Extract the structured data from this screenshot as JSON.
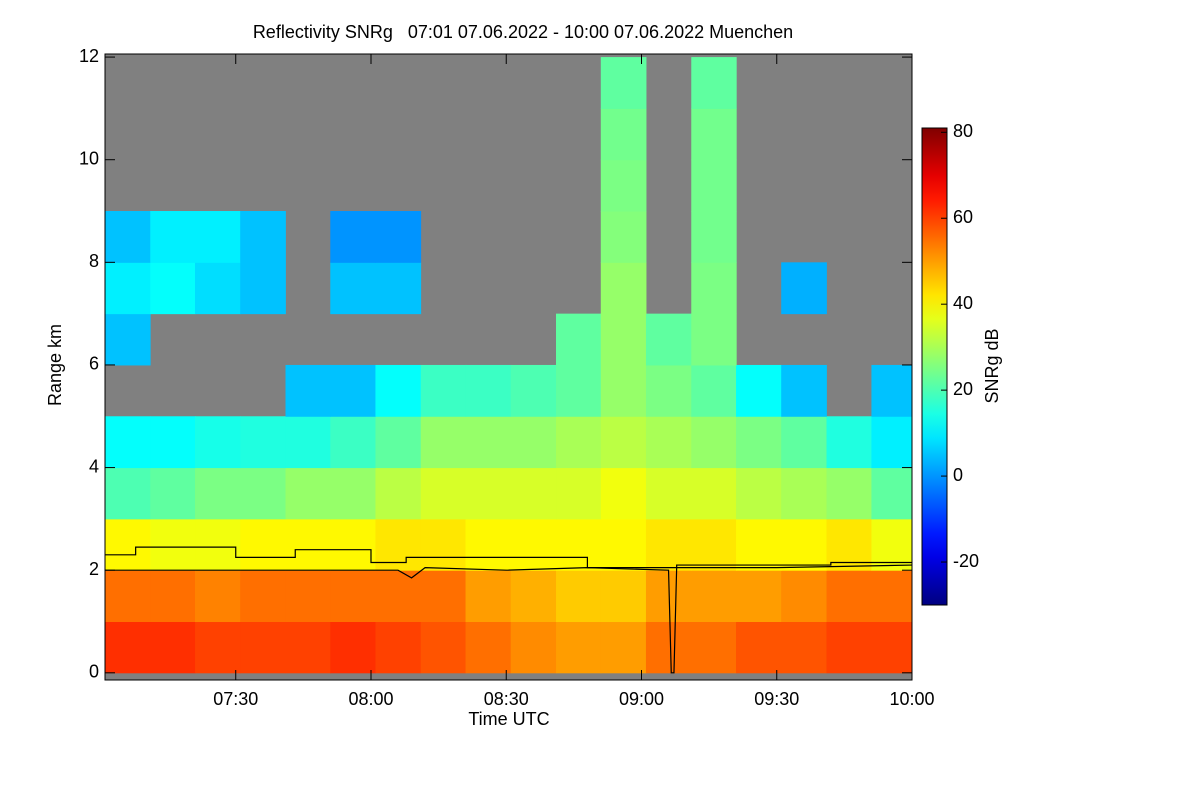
{
  "chart_data": {
    "type": "heatmap",
    "title": "Reflectivity SNRg   07:01 07.06.2022 - 10:00 07.06.2022 Muenchen",
    "xlabel": "Time UTC",
    "ylabel": "Range km",
    "colorbar_label": "SNRg dB",
    "colormap": "jet",
    "missing_color": "#808080",
    "xlim": [
      7.0167,
      10.0
    ],
    "xticks": [
      {
        "value": 7.5,
        "label": "07:30"
      },
      {
        "value": 8.0,
        "label": "08:00"
      },
      {
        "value": 8.5,
        "label": "08:30"
      },
      {
        "value": 9.0,
        "label": "09:00"
      },
      {
        "value": 9.5,
        "label": "09:30"
      },
      {
        "value": 10.0,
        "label": "10:00"
      }
    ],
    "ylim": [
      -0.14,
      12.06
    ],
    "yticks": [
      0,
      2,
      4,
      6,
      8,
      10,
      12
    ],
    "clim": [
      -30,
      81
    ],
    "cticks": [
      -20,
      0,
      20,
      40,
      60,
      80
    ],
    "x": [
      7.1,
      7.267,
      7.433,
      7.6,
      7.767,
      7.933,
      8.1,
      8.267,
      8.433,
      8.6,
      8.767,
      8.933,
      9.1,
      9.267,
      9.433,
      9.6,
      9.767,
      9.933
    ],
    "y": [
      0.5,
      1.5,
      2.5,
      3.5,
      4.5,
      5.5,
      6.5,
      7.5,
      8.5,
      9.5,
      10.5,
      11.5
    ],
    "z": [
      [
        62,
        62,
        60,
        60,
        60,
        62,
        60,
        58,
        55,
        52,
        50,
        50,
        55,
        55,
        58,
        58,
        60,
        60
      ],
      [
        55,
        55,
        53,
        55,
        55,
        55,
        55,
        55,
        50,
        48,
        45,
        45,
        50,
        50,
        50,
        52,
        55,
        55
      ],
      [
        40,
        38,
        38,
        40,
        40,
        40,
        42,
        42,
        40,
        40,
        40,
        40,
        42,
        42,
        40,
        40,
        42,
        38
      ],
      [
        20,
        22,
        25,
        25,
        28,
        28,
        32,
        35,
        35,
        35,
        35,
        38,
        35,
        35,
        32,
        30,
        28,
        22
      ],
      [
        12,
        12,
        14,
        15,
        15,
        18,
        22,
        28,
        28,
        28,
        30,
        32,
        30,
        28,
        25,
        22,
        15,
        10
      ],
      [
        null,
        null,
        null,
        null,
        5,
        5,
        12,
        18,
        18,
        20,
        22,
        28,
        25,
        22,
        12,
        5,
        null,
        5
      ],
      [
        5,
        null,
        null,
        null,
        null,
        null,
        null,
        null,
        null,
        null,
        22,
        28,
        22,
        25,
        null,
        null,
        null,
        null
      ],
      [
        10,
        12,
        8,
        5,
        null,
        5,
        5,
        null,
        null,
        null,
        null,
        28,
        null,
        25,
        null,
        3,
        null,
        null
      ],
      [
        5,
        10,
        10,
        5,
        null,
        0,
        0,
        null,
        null,
        null,
        null,
        26,
        null,
        24,
        null,
        null,
        null,
        null
      ],
      [
        null,
        null,
        null,
        null,
        null,
        null,
        null,
        null,
        null,
        null,
        null,
        25,
        null,
        24,
        null,
        null,
        null,
        null
      ],
      [
        null,
        null,
        null,
        null,
        null,
        null,
        null,
        null,
        null,
        null,
        null,
        24,
        null,
        24,
        null,
        null,
        null,
        null
      ],
      [
        null,
        null,
        null,
        null,
        null,
        null,
        null,
        null,
        null,
        null,
        null,
        22,
        null,
        22,
        null,
        null,
        null,
        null
      ]
    ],
    "series": [
      {
        "color": "#000000",
        "x": [
          7.017,
          7.13,
          7.13,
          7.5,
          7.5,
          7.72,
          7.72,
          8.0,
          8.0,
          8.13,
          8.13,
          8.8,
          8.8,
          9.13,
          9.13,
          9.7,
          9.7,
          10.0
        ],
        "values": [
          2.3,
          2.3,
          2.45,
          2.45,
          2.25,
          2.25,
          2.4,
          2.4,
          2.15,
          2.15,
          2.25,
          2.25,
          2.05,
          2.05,
          2.1,
          2.1,
          2.15,
          2.15
        ]
      },
      {
        "color": "#000000",
        "x": [
          7.017,
          8.1,
          8.15,
          8.2,
          8.5,
          8.8,
          9.1,
          9.11,
          9.12,
          9.13,
          9.5,
          10.0
        ],
        "values": [
          2.0,
          2.0,
          1.85,
          2.05,
          2.0,
          2.05,
          2.0,
          0,
          0,
          2.05,
          2.05,
          2.1
        ]
      }
    ]
  }
}
